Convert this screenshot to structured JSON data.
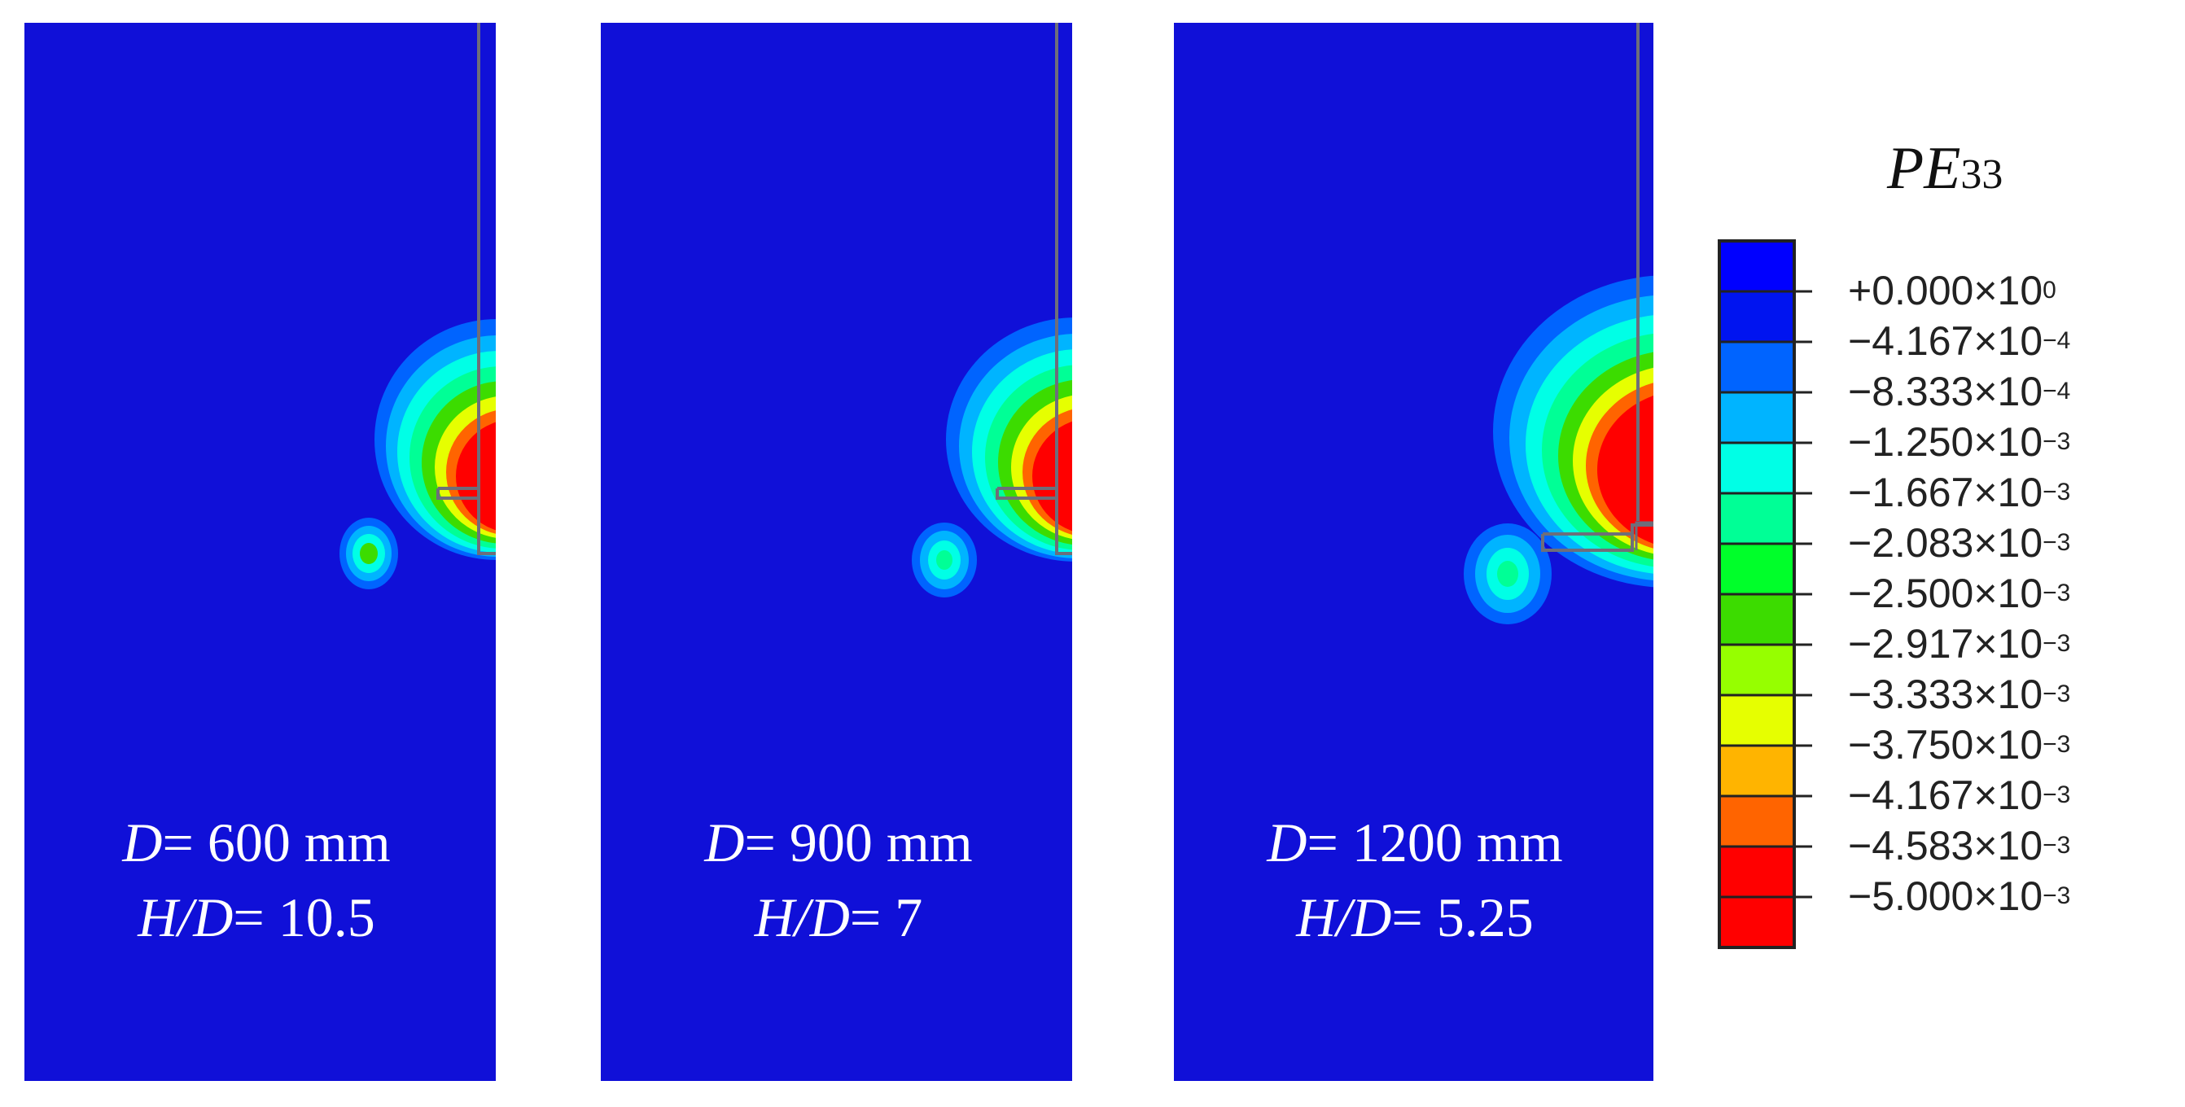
{
  "colors": {
    "background": "#1010d8",
    "outline": "#6e6e7a"
  },
  "panels": [
    {
      "d_prefix": "D",
      "d_value": "= 600 mm",
      "ratio_prefix": "H/D",
      "ratio_value": "= 10.5"
    },
    {
      "d_prefix": "D",
      "d_value": "= 900 mm",
      "ratio_prefix": "H/D",
      "ratio_value": "= 7"
    },
    {
      "d_prefix": "D",
      "d_value": "= 1200 mm",
      "ratio_prefix": "H/D",
      "ratio_value": "= 5.25"
    }
  ],
  "legend": {
    "title_symbol": "PE",
    "title_subscript": "33",
    "colors": [
      "#0000ff",
      "#0014f0",
      "#0064ff",
      "#00b4ff",
      "#00ffe6",
      "#00ff96",
      "#00ff2a",
      "#3cdc00",
      "#96ff00",
      "#e6ff00",
      "#ffb400",
      "#ff6400",
      "#ff0000",
      "#ff0000"
    ],
    "ticks": [
      {
        "mantissa": "+0.000×10",
        "exponent": "0"
      },
      {
        "mantissa": "−4.167×10",
        "exponent": "−4"
      },
      {
        "mantissa": "−8.333×10",
        "exponent": "−4"
      },
      {
        "mantissa": "−1.250×10",
        "exponent": "−3"
      },
      {
        "mantissa": "−1.667×10",
        "exponent": "−3"
      },
      {
        "mantissa": "−2.083×10",
        "exponent": "−3"
      },
      {
        "mantissa": "−2.500×10",
        "exponent": "−3"
      },
      {
        "mantissa": "−2.917×10",
        "exponent": "−3"
      },
      {
        "mantissa": "−3.333×10",
        "exponent": "−3"
      },
      {
        "mantissa": "−3.750×10",
        "exponent": "−3"
      },
      {
        "mantissa": "−4.167×10",
        "exponent": "−3"
      },
      {
        "mantissa": "−4.583×10",
        "exponent": "−3"
      },
      {
        "mantissa": "−5.000×10",
        "exponent": "−3"
      }
    ]
  }
}
